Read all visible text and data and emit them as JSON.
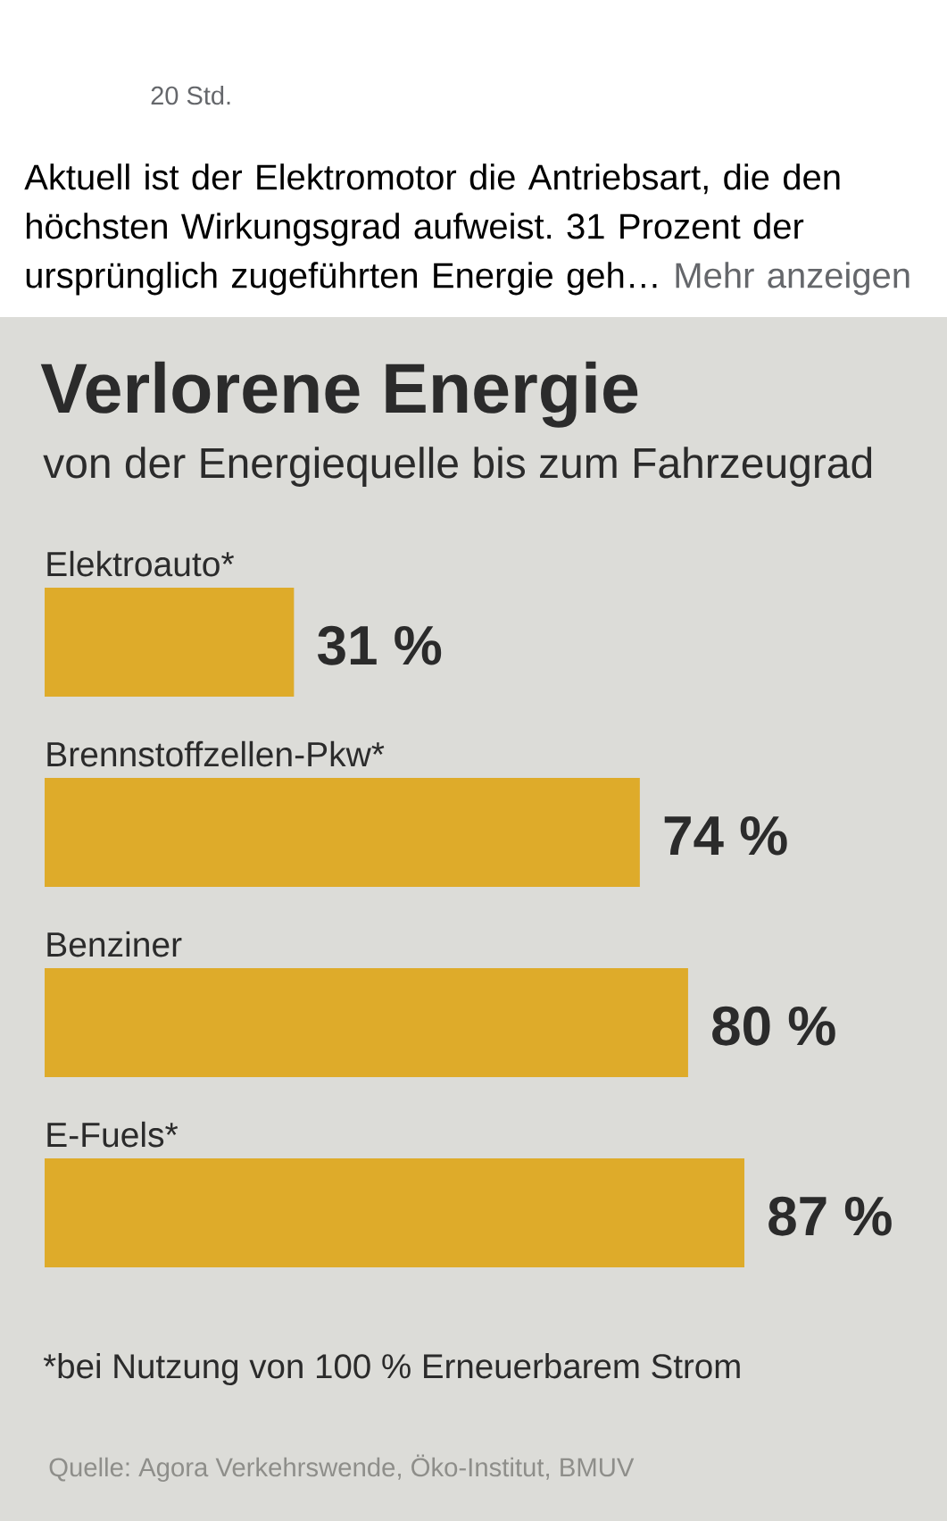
{
  "chart_data": {
    "type": "bar",
    "orientation": "horizontal",
    "title": "Verlorene Energie",
    "subtitle": "von der Energiequelle bis zum Fahrzeugrad",
    "categories": [
      "Elektroauto*",
      "Brennstoffzellen-Pkw*",
      "Benziner",
      "E-Fuels*"
    ],
    "values": [
      31,
      74,
      80,
      87
    ],
    "value_labels": [
      "31 %",
      "74 %",
      "80 %",
      "87 %"
    ],
    "color": "#deab2a",
    "tick_labels": "y",
    "annotations": [
      "20 Std.",
      "Aktuell ist der Elektromotor die Antriebsart, die den höchsten Wirkungsgrad aufweist. 31 Prozent der ursprünglich zugeführten Energie geh…",
      "Mehr anzeigen",
      "*bei Nutzung von 100 % Erneuerbarem Strom",
      "Quelle: Agora Verkehrswende, Öko-Institut, BMUV"
    ]
  }
}
